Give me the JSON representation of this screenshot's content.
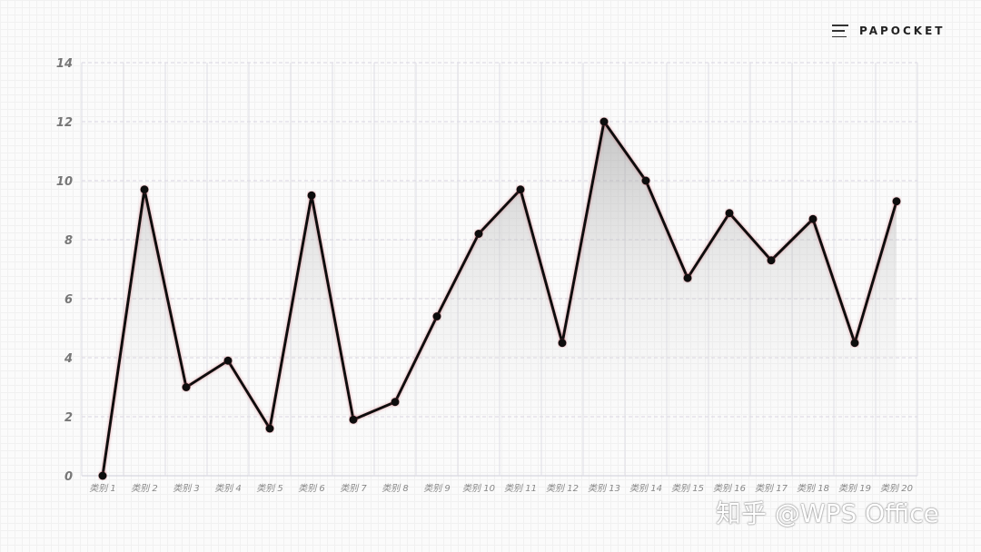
{
  "brand": {
    "name": "PAPOCKET",
    "icon": "menu-icon"
  },
  "watermark": "知乎 @WPS Office",
  "chart_data": {
    "type": "line",
    "title": "",
    "xlabel": "",
    "ylabel": "",
    "ylim": [
      0,
      14
    ],
    "yticks": [
      0,
      2,
      4,
      6,
      8,
      10,
      12,
      14
    ],
    "grid": true,
    "area_fill": true,
    "line_color": "#111111",
    "categories": [
      "类别 1",
      "类别 2",
      "类别 3",
      "类别 4",
      "类别 5",
      "类别 6",
      "类别 7",
      "类别 8",
      "类别 9",
      "类别 10",
      "类别 11",
      "类别 12",
      "类别 13",
      "类别 14",
      "类别 15",
      "类别 16",
      "类别 17",
      "类别 18",
      "类别 19",
      "类别 20"
    ],
    "values": [
      0,
      9.7,
      3.0,
      3.9,
      1.6,
      9.5,
      1.9,
      2.5,
      5.4,
      8.2,
      9.7,
      4.5,
      12,
      10,
      6.7,
      8.9,
      7.3,
      8.7,
      4.5,
      9.3
    ]
  }
}
